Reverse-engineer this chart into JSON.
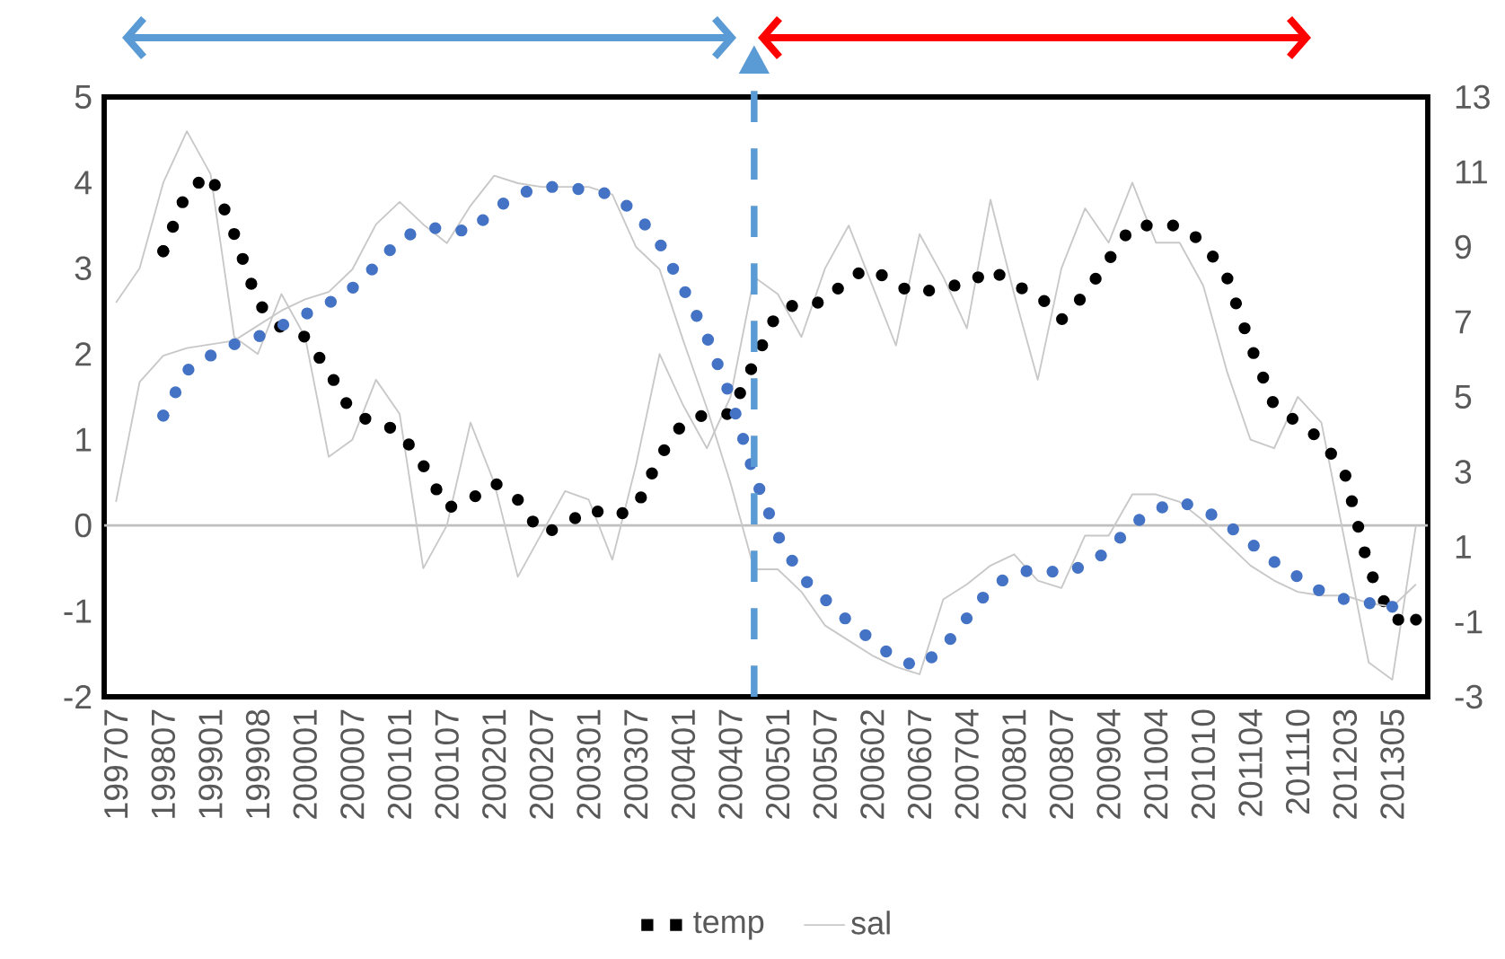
{
  "chart_data": {
    "type": "line",
    "categories": [
      "199707",
      null,
      "199807",
      null,
      "199901",
      null,
      "199908",
      null,
      "200001",
      null,
      "200007",
      null,
      "200101",
      null,
      "200107",
      null,
      "200201",
      null,
      "200207",
      null,
      "200301",
      null,
      "200307",
      null,
      "200401",
      null,
      "200407",
      null,
      "200501",
      null,
      "200507",
      null,
      "200602",
      null,
      "200607",
      null,
      "200704",
      null,
      "200801",
      null,
      "200807",
      null,
      "200904",
      null,
      "201004",
      null,
      "201010",
      null,
      "201104",
      null,
      "201110",
      null,
      "201203",
      null,
      "201305",
      null
    ],
    "ylim": [
      -2,
      5
    ],
    "yticks": [
      -2,
      -1,
      0,
      1,
      2,
      3,
      4,
      5
    ],
    "y2lim": [
      -3,
      13
    ],
    "y2ticks": [
      -3,
      -1,
      1,
      3,
      5,
      7,
      9,
      11,
      13
    ],
    "series": [
      {
        "color": "#c8c8c8",
        "line_style": "solid",
        "values": [
          2.6,
          3.0,
          4.0,
          4.6,
          4.1,
          2.2,
          2.0,
          2.7,
          2.2,
          0.8,
          1.0,
          1.7,
          1.3,
          -0.5,
          0.0,
          1.2,
          0.5,
          -0.6,
          -0.1,
          0.4,
          0.3,
          -0.4,
          0.7,
          2.0,
          1.4,
          0.9,
          1.5,
          2.9,
          2.7,
          2.2,
          3.0,
          3.5,
          2.8,
          2.1,
          3.4,
          2.9,
          2.3,
          3.8,
          2.7,
          1.7,
          3.0,
          3.7,
          3.3,
          4.0,
          3.3,
          3.3,
          2.8,
          1.8,
          1.0,
          0.9,
          1.5,
          1.2,
          -0.2,
          -1.6,
          -1.8,
          0.0
        ]
      },
      {
        "name": "temp",
        "color": "#000000",
        "line_style": "dotted",
        "values": [
          null,
          null,
          3.2,
          3.9,
          4.1,
          3.4,
          2.6,
          2.3,
          2.2,
          1.8,
          1.3,
          1.2,
          1.1,
          0.7,
          0.2,
          0.3,
          0.5,
          0.3,
          -0.1,
          0.0,
          0.2,
          0.1,
          0.2,
          0.8,
          1.2,
          1.3,
          1.3,
          1.9,
          2.5,
          2.6,
          2.6,
          2.9,
          3.0,
          2.8,
          2.7,
          2.8,
          2.8,
          3.0,
          2.8,
          2.7,
          2.4,
          2.7,
          3.1,
          3.5,
          3.5,
          3.5,
          3.3,
          2.9,
          2.1,
          1.4,
          1.2,
          1.0,
          0.6,
          -0.5,
          -1.1,
          -1.1
        ]
      },
      {
        "name": "sal",
        "color": "#c8c8c8",
        "line_style": "solid",
        "axis": "y2",
        "values": [
          2.2,
          5.4,
          6.1,
          6.3,
          6.4,
          6.5,
          6.9,
          7.3,
          7.6,
          7.8,
          8.4,
          9.6,
          10.2,
          9.6,
          9.1,
          10.1,
          10.9,
          10.7,
          10.6,
          10.6,
          10.6,
          10.4,
          9.0,
          8.4,
          6.5,
          4.7,
          2.7,
          0.4,
          0.4,
          -0.2,
          -1.1,
          -1.5,
          -1.9,
          -2.2,
          -2.4,
          -0.4,
          0.0,
          0.5,
          0.8,
          0.1,
          -0.1,
          1.3,
          1.3,
          2.4,
          2.4,
          2.2,
          1.7,
          1.1,
          0.5,
          0.1,
          -0.2,
          -0.3,
          -0.3,
          -0.5,
          -0.6,
          0.0
        ]
      },
      {
        "color": "#4472c4",
        "line_style": "dotted",
        "axis": "y2",
        "values": [
          null,
          null,
          4.5,
          5.7,
          6.1,
          6.4,
          6.6,
          6.9,
          7.2,
          7.5,
          7.9,
          8.5,
          9.2,
          9.5,
          9.5,
          9.4,
          10.0,
          10.4,
          10.6,
          10.6,
          10.5,
          10.4,
          9.9,
          9.1,
          7.9,
          6.6,
          5.0,
          2.9,
          1.3,
          0.2,
          -0.4,
          -1.0,
          -1.5,
          -2.0,
          -2.2,
          -1.7,
          -0.9,
          -0.1,
          0.3,
          0.4,
          0.3,
          0.5,
          0.9,
          1.6,
          2.0,
          2.2,
          2.0,
          1.6,
          1.1,
          0.6,
          0.2,
          -0.2,
          -0.4,
          -0.5,
          -0.6,
          null
        ]
      }
    ],
    "ref_lines": [
      {
        "axis": "y",
        "value": 0,
        "color": "#bfbfbf",
        "line_style": "solid"
      }
    ],
    "legend": "bottom",
    "marker": "none",
    "grid": false
  }
}
